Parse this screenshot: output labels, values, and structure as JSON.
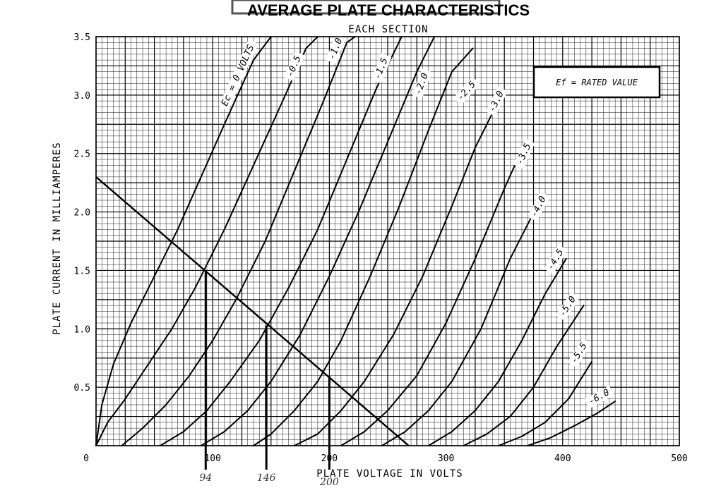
{
  "chart_data": {
    "type": "line",
    "title": "AVERAGE PLATE CHARACTERISTICS",
    "subtitle": "EACH SECTION",
    "xlabel": "PLATE VOLTAGE IN VOLTS",
    "ylabel": "PLATE CURRENT IN MILLIAMPERES",
    "xlim": [
      0,
      500
    ],
    "ylim": [
      0,
      3.5
    ],
    "grid": true,
    "x_ticks": [
      "0",
      "100",
      "200",
      "300",
      "400",
      "500"
    ],
    "y_ticks": [
      "0.5",
      "1.0",
      "1.5",
      "2.0",
      "2.5",
      "3.0",
      "3.5"
    ],
    "x_tick_values": [
      0,
      100,
      200,
      300,
      400,
      500
    ],
    "y_tick_values": [
      0.5,
      1.0,
      1.5,
      2.0,
      2.5,
      3.0,
      3.5
    ],
    "annotation_box": "Ef = RATED VALUE",
    "series": [
      {
        "name": "Ec = 0 VOLTS",
        "label_at": [
          112,
          2.9
        ],
        "points": [
          [
            0,
            0
          ],
          [
            5,
            0.35
          ],
          [
            15,
            0.7
          ],
          [
            30,
            1.05
          ],
          [
            50,
            1.45
          ],
          [
            70,
            1.85
          ],
          [
            90,
            2.3
          ],
          [
            110,
            2.75
          ],
          [
            135,
            3.3
          ],
          [
            150,
            3.6
          ]
        ]
      },
      {
        "name": "-0.5",
        "label_at": [
          168,
          3.15
        ],
        "points": [
          [
            0,
            0
          ],
          [
            10,
            0.2
          ],
          [
            25,
            0.4
          ],
          [
            45,
            0.7
          ],
          [
            65,
            1.0
          ],
          [
            85,
            1.35
          ],
          [
            110,
            1.85
          ],
          [
            135,
            2.4
          ],
          [
            160,
            2.95
          ],
          [
            180,
            3.4
          ],
          [
            190,
            3.6
          ]
        ]
      },
      {
        "name": "-1.0",
        "label_at": [
          204,
          3.3
        ],
        "points": [
          [
            22,
            0
          ],
          [
            40,
            0.15
          ],
          [
            60,
            0.35
          ],
          [
            80,
            0.6
          ],
          [
            100,
            0.9
          ],
          [
            120,
            1.25
          ],
          [
            145,
            1.75
          ],
          [
            170,
            2.35
          ],
          [
            195,
            2.95
          ],
          [
            215,
            3.45
          ],
          [
            222,
            3.6
          ]
        ]
      },
      {
        "name": "-1.5",
        "label_at": [
          243,
          3.13
        ],
        "points": [
          [
            55,
            0
          ],
          [
            75,
            0.12
          ],
          [
            95,
            0.3
          ],
          [
            115,
            0.55
          ],
          [
            140,
            0.9
          ],
          [
            165,
            1.35
          ],
          [
            190,
            1.85
          ],
          [
            215,
            2.45
          ],
          [
            240,
            3.05
          ],
          [
            262,
            3.6
          ]
        ]
      },
      {
        "name": "-2.0",
        "label_at": [
          278,
          3.0
        ],
        "points": [
          [
            90,
            0
          ],
          [
            110,
            0.12
          ],
          [
            130,
            0.3
          ],
          [
            150,
            0.55
          ],
          [
            175,
            0.95
          ],
          [
            200,
            1.45
          ],
          [
            225,
            2.0
          ],
          [
            250,
            2.6
          ],
          [
            275,
            3.2
          ],
          [
            290,
            3.6
          ]
        ]
      },
      {
        "name": "-2.5",
        "label_at": [
          313,
          2.95
        ],
        "points": [
          [
            135,
            0
          ],
          [
            150,
            0.1
          ],
          [
            170,
            0.3
          ],
          [
            190,
            0.55
          ],
          [
            210,
            0.9
          ],
          [
            235,
            1.45
          ],
          [
            260,
            2.05
          ],
          [
            285,
            2.7
          ],
          [
            305,
            3.2
          ],
          [
            323,
            3.4
          ]
        ]
      },
      {
        "name": "-3.0",
        "label_at": [
          341,
          2.85
        ],
        "points": [
          [
            170,
            0
          ],
          [
            190,
            0.1
          ],
          [
            210,
            0.3
          ],
          [
            230,
            0.55
          ],
          [
            255,
            0.95
          ],
          [
            280,
            1.45
          ],
          [
            305,
            2.05
          ],
          [
            325,
            2.55
          ],
          [
            345,
            2.95
          ]
        ]
      },
      {
        "name": "-3.5",
        "label_at": [
          365,
          2.4
        ],
        "points": [
          [
            210,
            0
          ],
          [
            230,
            0.12
          ],
          [
            250,
            0.3
          ],
          [
            275,
            0.6
          ],
          [
            300,
            1.05
          ],
          [
            325,
            1.6
          ],
          [
            350,
            2.2
          ],
          [
            368,
            2.6
          ]
        ]
      },
      {
        "name": "-4.0",
        "label_at": [
          377,
          1.95
        ],
        "points": [
          [
            245,
            0
          ],
          [
            265,
            0.12
          ],
          [
            285,
            0.3
          ],
          [
            305,
            0.55
          ],
          [
            330,
            1.0
          ],
          [
            355,
            1.6
          ],
          [
            378,
            2.05
          ]
        ]
      },
      {
        "name": "-4.5",
        "label_at": [
          391,
          1.5
        ],
        "points": [
          [
            285,
            0
          ],
          [
            305,
            0.12
          ],
          [
            325,
            0.3
          ],
          [
            345,
            0.55
          ],
          [
            365,
            0.9
          ],
          [
            385,
            1.3
          ],
          [
            403,
            1.6
          ]
        ]
      },
      {
        "name": "-5.0",
        "label_at": [
          401,
          1.1
        ],
        "points": [
          [
            315,
            0
          ],
          [
            335,
            0.1
          ],
          [
            355,
            0.25
          ],
          [
            375,
            0.5
          ],
          [
            395,
            0.85
          ],
          [
            418,
            1.2
          ]
        ]
      },
      {
        "name": "-5.5",
        "label_at": [
          411,
          0.7
        ],
        "points": [
          [
            345,
            0
          ],
          [
            365,
            0.08
          ],
          [
            385,
            0.2
          ],
          [
            405,
            0.4
          ],
          [
            425,
            0.72
          ]
        ]
      },
      {
        "name": "-6.0",
        "label_at": [
          424,
          0.35
        ],
        "points": [
          [
            370,
            0
          ],
          [
            390,
            0.07
          ],
          [
            410,
            0.17
          ],
          [
            430,
            0.28
          ],
          [
            445,
            0.38
          ]
        ]
      }
    ],
    "load_line": {
      "points": [
        [
          0,
          2.3
        ],
        [
          268,
          0
        ]
      ]
    },
    "operating_points": [
      {
        "x": 94,
        "y": 1.5,
        "label": "94"
      },
      {
        "x": 146,
        "y": 1.03,
        "label": "146"
      },
      {
        "x": 200,
        "y": 0.6,
        "label": "200"
      }
    ]
  }
}
